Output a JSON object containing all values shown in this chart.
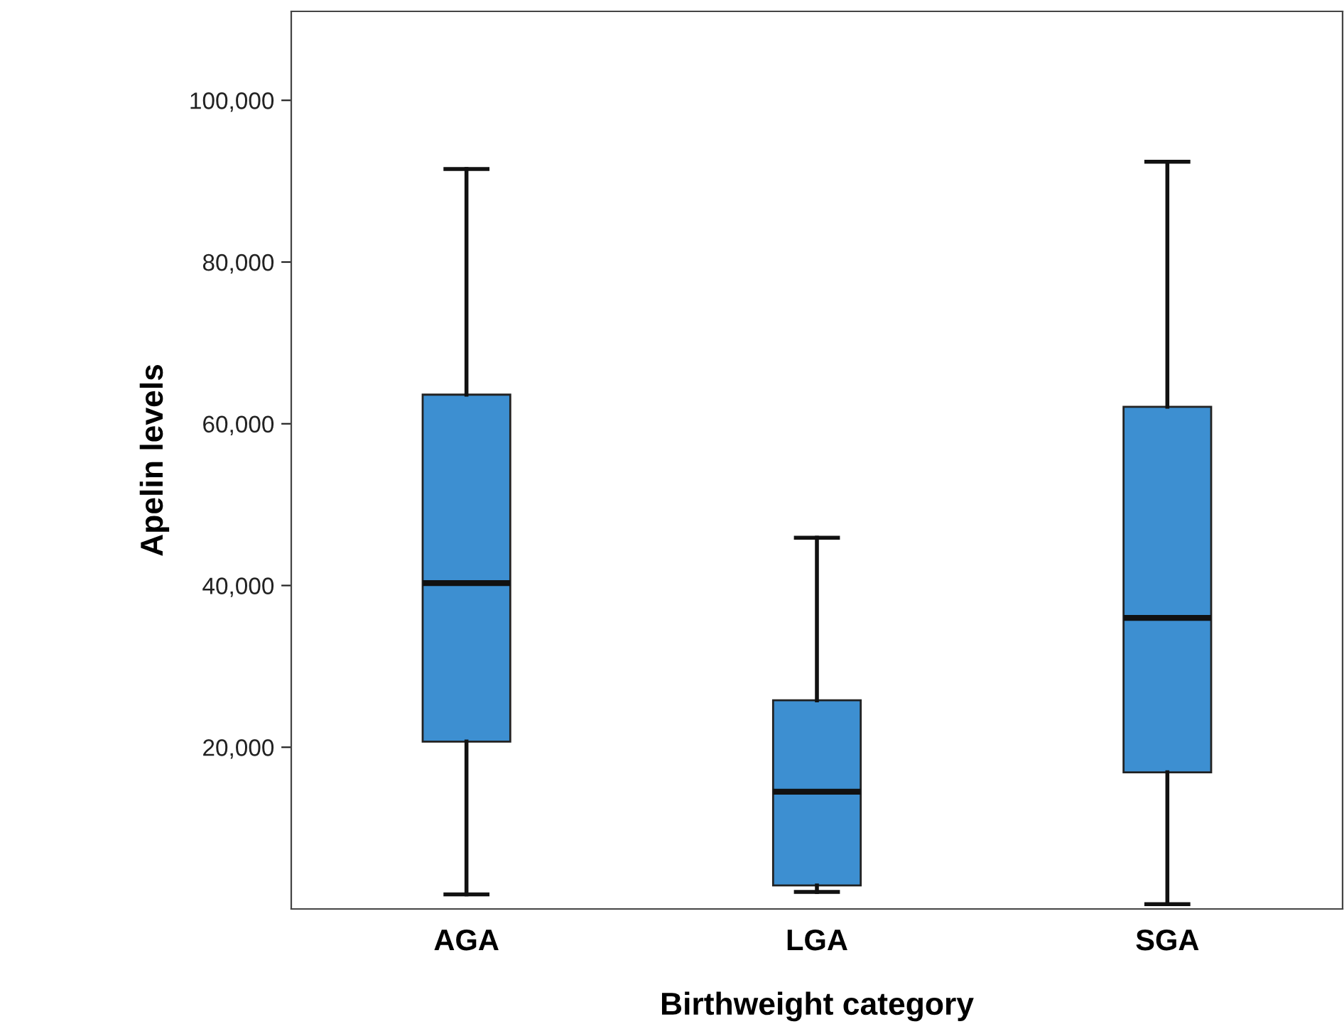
{
  "chart_data": {
    "type": "box",
    "xlabel": "Birthweight category",
    "ylabel": "Apelin levels",
    "categories": [
      "AGA",
      "LGA",
      "SGA"
    ],
    "boxes": [
      {
        "low": 1800,
        "q1": 20700,
        "median": 40300,
        "q3": 63600,
        "high": 91500
      },
      {
        "low": 2100,
        "q1": 2900,
        "median": 14500,
        "q3": 25800,
        "high": 45900
      },
      {
        "low": 600,
        "q1": 16900,
        "median": 36000,
        "q3": 62100,
        "high": 92400
      }
    ],
    "color": "#3d8fd1",
    "ylim": [
      0,
      111000
    ],
    "yticks": [
      {
        "value": 20000,
        "label": "20,000"
      },
      {
        "value": 40000,
        "label": "40,000"
      },
      {
        "value": 60000,
        "label": "60,000"
      },
      {
        "value": 80000,
        "label": "80,000"
      },
      {
        "value": 100000,
        "label": "100,000"
      }
    ],
    "grid": false
  }
}
